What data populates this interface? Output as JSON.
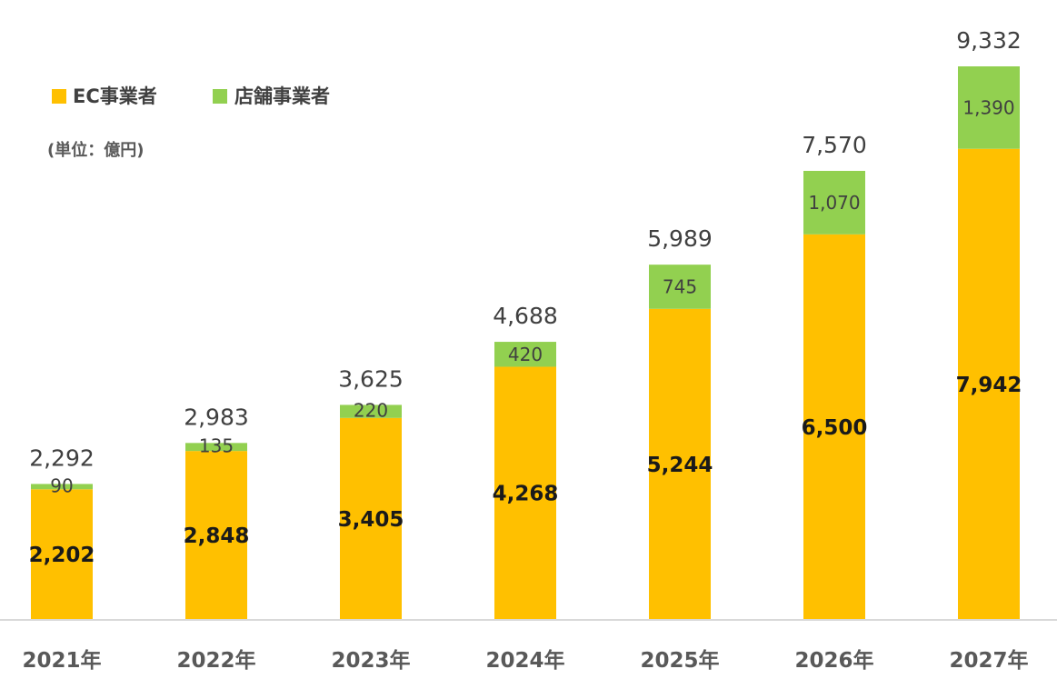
{
  "chart_data": {
    "type": "bar",
    "stacked": true,
    "categories": [
      "2021年",
      "2022年",
      "2023年",
      "2024年",
      "2025年",
      "2026年",
      "2027年"
    ],
    "series": [
      {
        "name": "EC事業者",
        "color": "#FFC000",
        "values": [
          2202,
          2848,
          3405,
          4268,
          5244,
          6500,
          7942
        ]
      },
      {
        "name": "店舗事業者",
        "color": "#92D050",
        "values": [
          90,
          135,
          220,
          420,
          745,
          1070,
          1390
        ]
      }
    ],
    "totals": [
      2292,
      2983,
      3625,
      4688,
      5989,
      7570,
      9332
    ],
    "unit_label": "(単位：億円)",
    "legend_position": "top-left",
    "grid": false,
    "ylim": [
      0,
      9332
    ]
  }
}
